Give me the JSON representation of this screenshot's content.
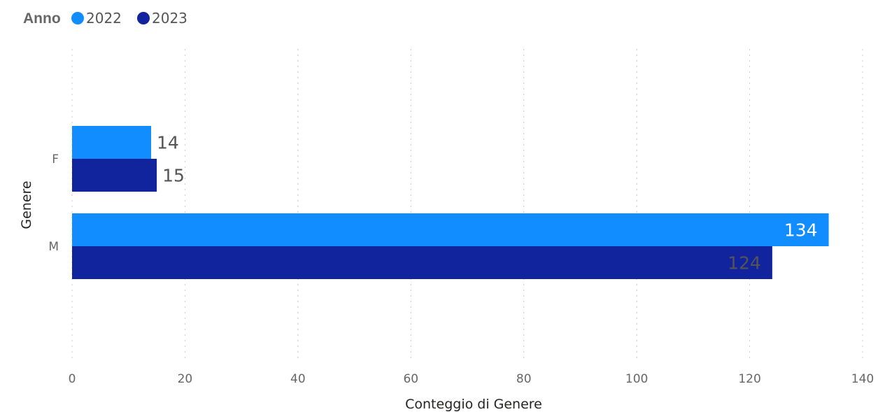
{
  "legend": {
    "title": "Anno"
  },
  "chart_data": {
    "type": "bar",
    "orientation": "horizontal",
    "categories": [
      "F",
      "M"
    ],
    "series": [
      {
        "name": "2022",
        "color": "#118DFF",
        "values": [
          14,
          134
        ]
      },
      {
        "name": "2023",
        "color": "#12239E",
        "values": [
          15,
          124
        ]
      }
    ],
    "xlabel": "Conteggio di Genere",
    "ylabel": "Genere",
    "xlim": [
      0,
      140
    ],
    "xticks": [
      "0",
      "20",
      "40",
      "60",
      "80",
      "100",
      "120",
      "140"
    ],
    "grid": true,
    "legend_position": "top-left",
    "data_labels": [
      "14",
      "134",
      "15",
      "124"
    ]
  }
}
